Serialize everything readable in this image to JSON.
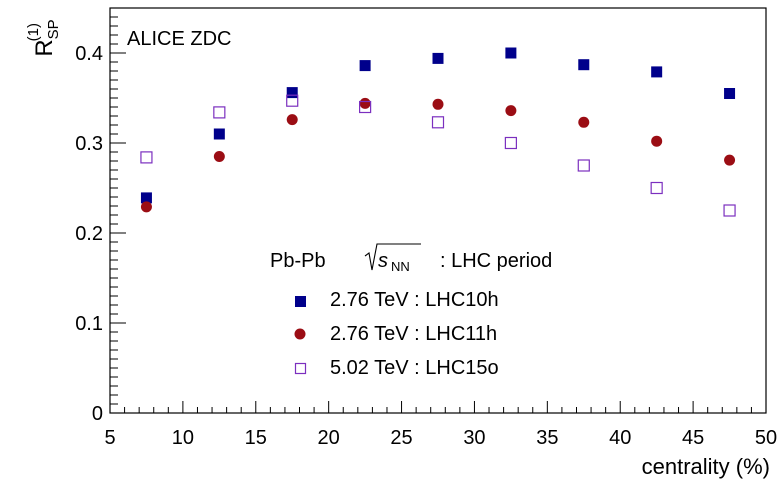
{
  "chart_data": {
    "type": "scatter",
    "title": "",
    "annotation": "ALICE ZDC",
    "xlabel": "centrality (%)",
    "ylabel": {
      "base": "R",
      "superscript": "(1)",
      "subscript": "SP"
    },
    "xlim": [
      5,
      50
    ],
    "ylim": [
      0,
      0.45
    ],
    "x_ticks": [
      5,
      10,
      15,
      20,
      25,
      30,
      35,
      40,
      45,
      50
    ],
    "y_ticks": [
      0,
      0.1,
      0.2,
      0.3,
      0.4
    ],
    "y_tick_labels": [
      "0",
      "0.1",
      "0.2",
      "0.3",
      "0.4"
    ],
    "grid": false,
    "legend": {
      "placement": "center",
      "header_left": "Pb-Pb",
      "header_sqrt_symbol": "s",
      "header_sqrt_subscript": "NN",
      "header_right": ": LHC period"
    },
    "series": [
      {
        "name": "2.76 TeV : LHC10h",
        "marker": "filled-square",
        "color": "#00008b",
        "x": [
          7.5,
          12.5,
          17.5,
          22.5,
          27.5,
          32.5,
          37.5,
          42.5,
          47.5
        ],
        "y": [
          0.239,
          0.31,
          0.356,
          0.386,
          0.394,
          0.4,
          0.387,
          0.379,
          0.355
        ]
      },
      {
        "name": "2.76 TeV : LHC11h",
        "marker": "filled-circle",
        "color": "#9b0d14",
        "x": [
          7.5,
          12.5,
          17.5,
          22.5,
          27.5,
          32.5,
          37.5,
          42.5,
          47.5
        ],
        "y": [
          0.229,
          0.285,
          0.326,
          0.344,
          0.343,
          0.336,
          0.323,
          0.302,
          0.281
        ]
      },
      {
        "name": "5.02 TeV : LHC15o",
        "marker": "open-square",
        "color": "#7b2fbf",
        "x": [
          7.5,
          12.5,
          17.5,
          22.5,
          27.5,
          32.5,
          37.5,
          42.5,
          47.5
        ],
        "y": [
          0.284,
          0.334,
          0.347,
          0.34,
          0.323,
          0.3,
          0.275,
          0.25,
          0.225
        ]
      }
    ]
  }
}
